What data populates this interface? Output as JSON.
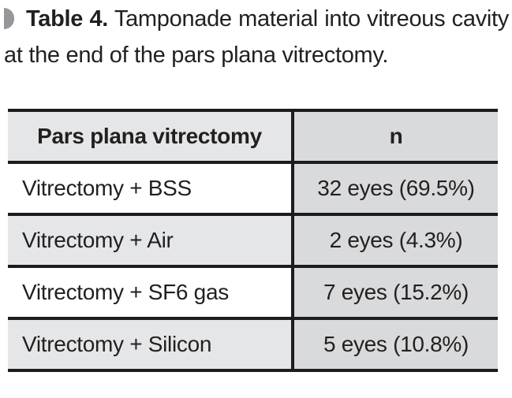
{
  "caption": {
    "label": "Table 4.",
    "text": "Tamponade material into vitreous cavity at the end of the pars plana vitrectomy."
  },
  "table": {
    "headers": {
      "material": "Pars plana vitrectomy",
      "n": "n"
    },
    "rows": [
      {
        "material": "Vitrectomy + BSS",
        "n": "32 eyes (69.5%)"
      },
      {
        "material": "Vitrectomy + Air",
        "n": "2 eyes (4.3%)"
      },
      {
        "material": "Vitrectomy + SF6 gas",
        "n": "7 eyes (15.2%)"
      },
      {
        "material": "Vitrectomy + Silicon",
        "n": "5 eyes (10.8%)"
      }
    ]
  },
  "chart_data": {
    "type": "table",
    "title": "Table 4. Tamponade material into vitreous cavity at the end of the pars plana vitrectomy.",
    "columns": [
      "Pars plana vitrectomy",
      "n"
    ],
    "categories": [
      "Vitrectomy + BSS",
      "Vitrectomy + Air",
      "Vitrectomy + SF6 gas",
      "Vitrectomy + Silicon"
    ],
    "values_eyes": [
      32,
      2,
      7,
      5
    ],
    "values_percent": [
      69.5,
      4.3,
      15.2,
      10.8
    ]
  },
  "colors": {
    "text": "#231f20",
    "border": "#1c1c1e",
    "header_material_bg": "#e5e6e7",
    "n_column_bg": "#d9dadb",
    "row_alt_bg": "#e5e6e7",
    "row_bg": "#ffffff",
    "caption_marker": "#97979b",
    "page_bg": "#ffffff"
  }
}
